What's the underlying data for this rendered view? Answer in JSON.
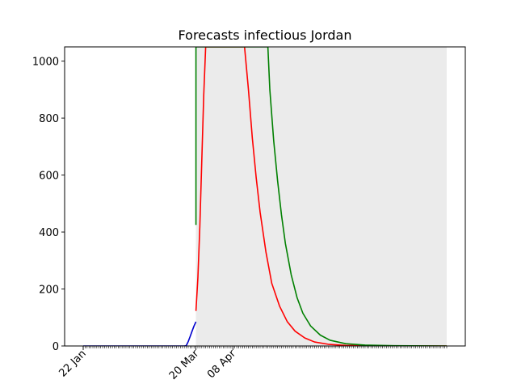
{
  "chart_data": {
    "type": "line",
    "title": "Forecasts infectious Jordan",
    "xlabel": "",
    "ylabel": "",
    "x_type": "date",
    "x_range": [
      "2020-01-22",
      "2020-07-27"
    ],
    "ylim": [
      0,
      1050
    ],
    "yticks": [
      0,
      200,
      400,
      600,
      800,
      1000
    ],
    "xtick_labels": [
      {
        "date": "2020-01-22",
        "label": "22 Jan"
      },
      {
        "date": "2020-03-20",
        "label": "20 Mar"
      },
      {
        "date": "2020-04-08",
        "label": "08 Apr"
      }
    ],
    "minor_ticks": "daily",
    "grid": false,
    "legend": "none",
    "band": {
      "color": "#ebebeb",
      "lower": [
        [
          "2020-03-20",
          0
        ],
        [
          "2020-07-27",
          0
        ]
      ],
      "upper": [
        [
          "2020-03-20",
          1050
        ],
        [
          "2020-07-27",
          1050
        ]
      ]
    },
    "series": [
      {
        "color": "#0000cd",
        "points": [
          [
            "2020-01-22",
            0
          ],
          [
            "2020-02-10",
            0
          ],
          [
            "2020-03-01",
            0
          ],
          [
            "2020-03-14",
            0
          ],
          [
            "2020-03-15",
            1
          ],
          [
            "2020-03-16",
            15
          ],
          [
            "2020-03-17",
            33
          ],
          [
            "2020-03-18",
            52
          ],
          [
            "2020-03-19",
            70
          ],
          [
            "2020-03-20",
            85
          ]
        ]
      },
      {
        "color": "#ff0000",
        "points": [
          [
            "2020-03-20",
            123
          ],
          [
            "2020-03-21",
            240
          ],
          [
            "2020-03-22",
            420
          ],
          [
            "2020-03-23",
            650
          ],
          [
            "2020-03-24",
            880
          ],
          [
            "2020-03-25",
            1050
          ],
          [
            "2020-04-14",
            1050
          ],
          [
            "2020-04-16",
            900
          ],
          [
            "2020-04-18",
            730
          ],
          [
            "2020-04-20",
            590
          ],
          [
            "2020-04-22",
            470
          ],
          [
            "2020-04-25",
            330
          ],
          [
            "2020-04-28",
            220
          ],
          [
            "2020-05-02",
            140
          ],
          [
            "2020-05-06",
            85
          ],
          [
            "2020-05-10",
            52
          ],
          [
            "2020-05-15",
            28
          ],
          [
            "2020-05-20",
            14
          ],
          [
            "2020-05-27",
            6
          ],
          [
            "2020-06-05",
            2
          ],
          [
            "2020-06-20",
            0.5
          ],
          [
            "2020-07-27",
            0
          ]
        ]
      },
      {
        "color": "#008000",
        "points": [
          [
            "2020-03-20",
            425
          ],
          [
            "2020-03-20",
            1050
          ],
          [
            "2020-04-26",
            1050
          ],
          [
            "2020-04-27",
            900
          ],
          [
            "2020-04-29",
            720
          ],
          [
            "2020-05-01",
            580
          ],
          [
            "2020-05-03",
            460
          ],
          [
            "2020-05-05",
            360
          ],
          [
            "2020-05-08",
            250
          ],
          [
            "2020-05-11",
            170
          ],
          [
            "2020-05-14",
            115
          ],
          [
            "2020-05-18",
            70
          ],
          [
            "2020-05-23",
            38
          ],
          [
            "2020-05-28",
            20
          ],
          [
            "2020-06-05",
            8
          ],
          [
            "2020-06-15",
            3
          ],
          [
            "2020-06-30",
            1
          ],
          [
            "2020-07-27",
            0
          ]
        ]
      }
    ]
  }
}
